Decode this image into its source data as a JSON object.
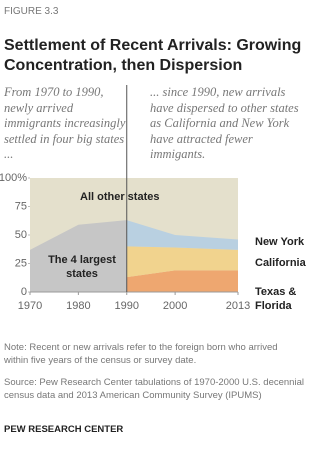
{
  "figure_label": "FIGURE 3.3",
  "chart_data": {
    "type": "area",
    "title": "Settlement of Recent Arrivals: Growing Concentration, then Dispersion",
    "annotations": [
      "From 1970 to 1990, newly arrived immigrants increasingly settled in four big states ...",
      "... since 1990, new arrivals have dispersed to other states as California and New York have attracted fewer immigants.",
      "All other states"
    ],
    "background_color": "#e4e0cc",
    "x": [
      1970,
      1980,
      1990,
      2000,
      2013
    ],
    "xlim": [
      1970,
      2013
    ],
    "xticks": [
      1970,
      1980,
      1990,
      2000,
      2013
    ],
    "ylim": [
      0,
      100
    ],
    "yticks": [
      0,
      25,
      50,
      75,
      {
        "value": 100,
        "label": "100%"
      }
    ],
    "series": [
      {
        "name": "The 4 largest states",
        "color": "#c6c6c6",
        "values": [
          37,
          59,
          63,
          null,
          null
        ]
      },
      {
        "name": "Texas & Florida",
        "color": "#eea770",
        "values": [
          null,
          null,
          13,
          19,
          19
        ]
      },
      {
        "name": "California",
        "color": "#f1d38e",
        "values": [
          null,
          null,
          27,
          20,
          18
        ]
      },
      {
        "name": "New York",
        "color": "#b9d0e1",
        "values": [
          null,
          null,
          23,
          11,
          9
        ]
      }
    ]
  },
  "notes": {
    "note": "Note: Recent or new arrivals refer to the foreign born who arrived within five years of the census or survey date.",
    "source": "Source: Pew Research Center tabulations of 1970-2000 U.S. decennial census data and 2013 American Community Survey (IPUMS)",
    "brand": "PEW RESEARCH CENTER"
  }
}
